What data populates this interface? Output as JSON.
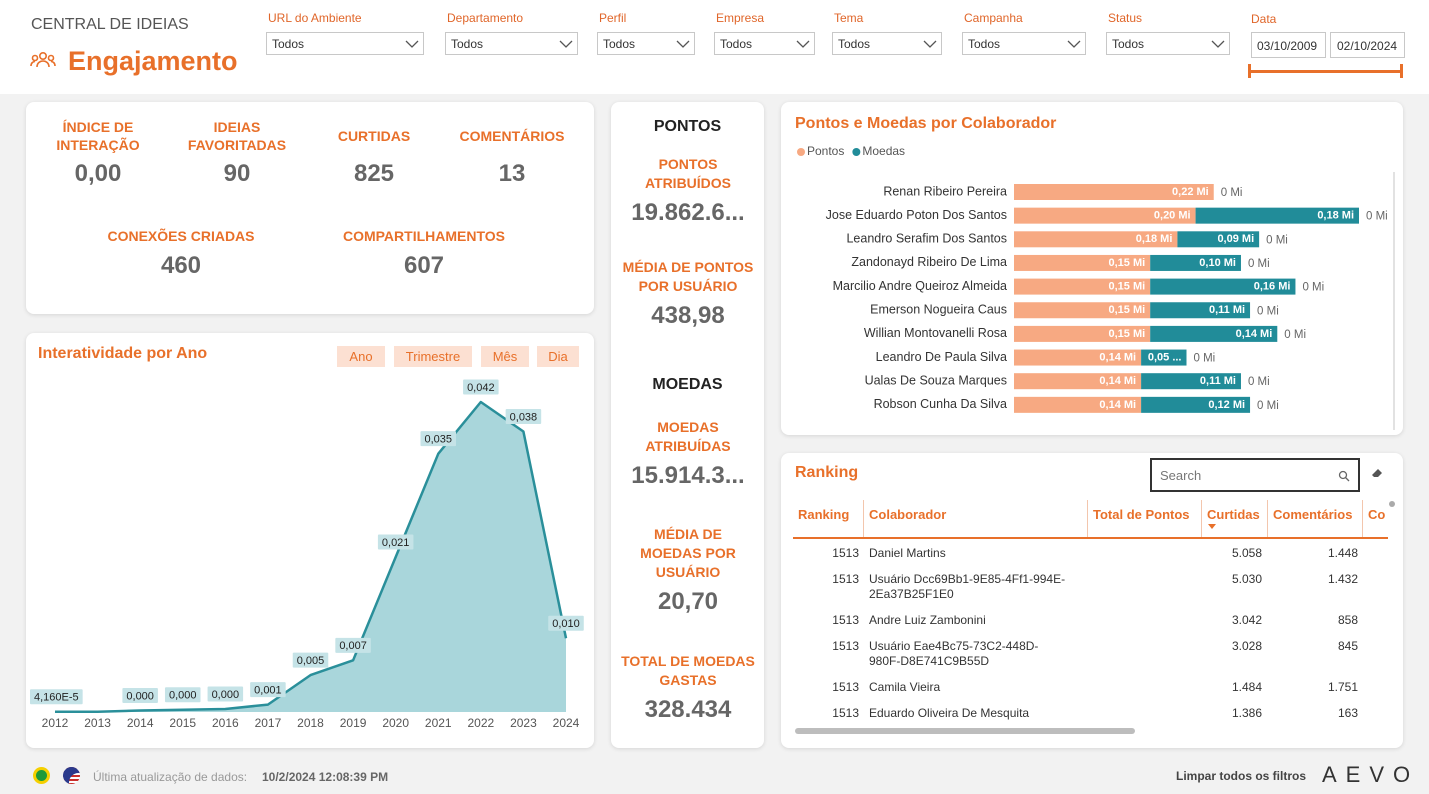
{
  "header": {
    "subtitle": "CENTRAL DE IDEIAS",
    "title": "Engajamento"
  },
  "filters": [
    {
      "label": "URL do Ambiente",
      "value": "Todos"
    },
    {
      "label": "Departamento",
      "value": "Todos"
    },
    {
      "label": "Perfil",
      "value": "Todos"
    },
    {
      "label": "Empresa",
      "value": "Todos"
    },
    {
      "label": "Tema",
      "value": "Todos"
    },
    {
      "label": "Campanha",
      "value": "Todos"
    },
    {
      "label": "Status",
      "value": "Todos"
    }
  ],
  "date_filter": {
    "label": "Data",
    "start": "03/10/2009",
    "end": "02/10/2024"
  },
  "kpis": [
    {
      "label": "ÍNDICE DE INTERAÇÃO",
      "value": "0,00"
    },
    {
      "label": "IDEIAS FAVORITADAS",
      "value": "90"
    },
    {
      "label": "CURTIDAS",
      "value": "825"
    },
    {
      "label": "COMENTÁRIOS",
      "value": "13"
    },
    {
      "label": "CONEXÕES CRIADAS",
      "value": "460"
    },
    {
      "label": "COMPARTILHAMENTOS",
      "value": "607"
    }
  ],
  "points_panel": [
    {
      "heading": "PONTOS",
      "items": [
        {
          "label": "PONTOS ATRIBUÍDOS",
          "value": "19.862.6..."
        },
        {
          "label": "MÉDIA DE PONTOS POR USUÁRIO",
          "value": "438,98"
        }
      ]
    },
    {
      "heading": "MOEDAS",
      "items": [
        {
          "label": "MOEDAS ATRIBUÍDAS",
          "value": "15.914.3..."
        },
        {
          "label": "MÉDIA DE MOEDAS POR USUÁRIO",
          "value": "20,70"
        },
        {
          "label": "TOTAL DE MOEDAS GASTAS",
          "value": "328.434"
        }
      ]
    }
  ],
  "chart_data": [
    {
      "type": "stacked-bar-horizontal",
      "title": "Pontos e Moedas por Colaborador",
      "categories": [
        "Renan Ribeiro Pereira",
        "Jose Eduardo Poton Dos Santos",
        "Leandro Serafim Dos Santos",
        "Zandonayd Ribeiro De Lima",
        "Marcilio Andre Queiroz Almeida",
        "Emerson Nogueira Caus",
        "Willian Montovanelli Rosa",
        "Leandro De Paula Silva",
        "Ualas De Souza Marques",
        "Robson Cunha Da Silva"
      ],
      "series": [
        {
          "name": "Pontos",
          "color": "#f7a982",
          "values": [
            0.22,
            0.2,
            0.18,
            0.15,
            0.15,
            0.15,
            0.15,
            0.14,
            0.14,
            0.14
          ],
          "value_labels": [
            "0,22 Mi",
            "0,20 Mi",
            "0,18 Mi",
            "0,15 Mi",
            "0,15 Mi",
            "0,15 Mi",
            "0,15 Mi",
            "0,14 Mi",
            "0,14 Mi",
            "0,14 Mi"
          ]
        },
        {
          "name": "Moedas",
          "color": "#218c99",
          "values": [
            null,
            0.18,
            0.09,
            0.1,
            0.16,
            0.11,
            0.14,
            0.05,
            0.11,
            0.12
          ],
          "value_labels": [
            null,
            "0,18 Mi",
            "0,09 Mi",
            "0,10 Mi",
            "0,16 Mi",
            "0,11 Mi",
            "0,14 Mi",
            "0,05 ...",
            "0,11 Mi",
            "0,12 Mi"
          ]
        }
      ],
      "end_labels": [
        "0 Mi",
        "0 Mi",
        "0 Mi",
        "0 Mi",
        "0 Mi",
        "0 Mi",
        "0 Mi",
        "0 Mi",
        "0 Mi",
        "0 Mi"
      ]
    },
    {
      "type": "area",
      "title": "Interatividade por Ano",
      "buttons": [
        "Ano",
        "Trimestre",
        "Mês",
        "Dia"
      ],
      "x": [
        2012,
        2013,
        2014,
        2015,
        2016,
        2017,
        2018,
        2019,
        2020,
        2021,
        2022,
        2023,
        2024
      ],
      "values": [
        4.16e-05,
        3e-05,
        0.0002,
        0.0003,
        0.0004,
        0.001,
        0.005,
        0.007,
        0.021,
        0.035,
        0.042,
        0.038,
        0.01
      ],
      "value_labels": [
        "4,160E-5",
        null,
        "0,000",
        "0,000",
        "0,000",
        "0,001",
        "0,005",
        "0,007",
        "0,021",
        "0,035",
        "0,042",
        "0,038",
        "0,010"
      ],
      "color": "#2a8f9a"
    }
  ],
  "ranking": {
    "title": "Ranking",
    "search_placeholder": "Search",
    "columns": [
      "Ranking",
      "Colaborador",
      "Total de Pontos",
      "Curtidas",
      "Comentários",
      "Co"
    ],
    "rows": [
      {
        "ranking": "1513",
        "colaborador": "Daniel Martins",
        "curtidas": "5.058",
        "comentarios": "1.448"
      },
      {
        "ranking": "1513",
        "colaborador": "Usuário Dcc69Bb1-9E85-4Ff1-994E-2Ea37B25F1E0",
        "curtidas": "5.030",
        "comentarios": "1.432"
      },
      {
        "ranking": "1513",
        "colaborador": "Andre Luiz Zambonini",
        "curtidas": "3.042",
        "comentarios": "858"
      },
      {
        "ranking": "1513",
        "colaborador": "Usuário Eae4Bc75-73C2-448D-980F-D8E741C9B55D",
        "curtidas": "3.028",
        "comentarios": "845"
      },
      {
        "ranking": "1513",
        "colaborador": "Camila Vieira",
        "curtidas": "1.484",
        "comentarios": "1.751"
      },
      {
        "ranking": "1513",
        "colaborador": "Eduardo Oliveira De Mesquita",
        "curtidas": "1.386",
        "comentarios": "163"
      }
    ]
  },
  "footer": {
    "update_label": "Última atualização de dados:",
    "update_value": "10/2/2024 12:08:39 PM",
    "clear_filters": "Limpar todos os filtros",
    "logo": "AEVO"
  }
}
